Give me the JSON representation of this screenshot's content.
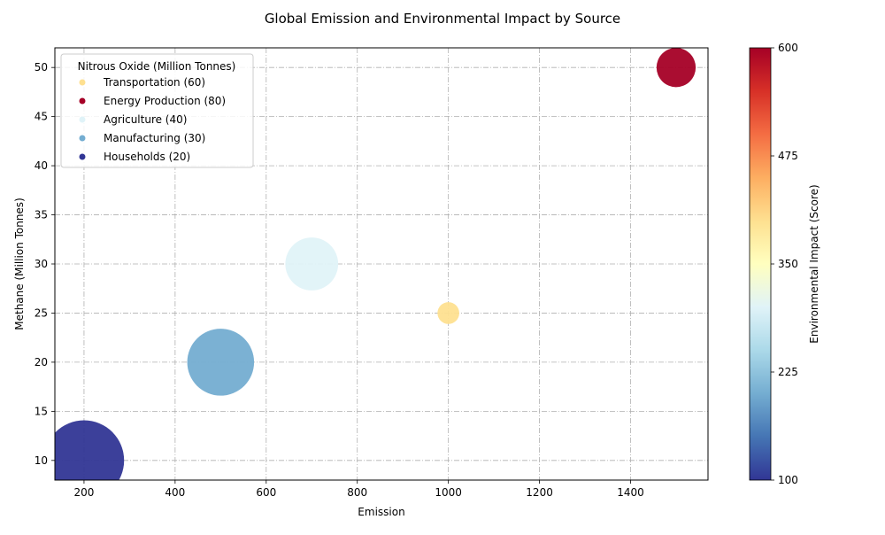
{
  "chart_data": {
    "type": "scatter",
    "title": "Global Emission and Environmental Impact by Source",
    "xlabel": "Emission",
    "ylabel": "Methane (Million Tonnes)",
    "xlim": [
      136,
      1570
    ],
    "ylim": [
      8,
      52
    ],
    "xticks": [
      200,
      400,
      600,
      800,
      1000,
      1200,
      1400
    ],
    "yticks": [
      10,
      15,
      20,
      25,
      30,
      35,
      40,
      45,
      50
    ],
    "grid": true,
    "legend": {
      "title": "Nitrous Oxide (Million Tonnes)",
      "placement": "top-left",
      "entries": [
        "Transportation (60)",
        "Energy Production (80)",
        "Agriculture (40)",
        "Manufacturing (30)",
        "Households (20)"
      ]
    },
    "colorbar": {
      "label": "Environmental Impact (Score)",
      "range": [
        100,
        600
      ],
      "ticks": [
        100,
        225,
        350,
        475,
        600
      ],
      "colormap": "RdYlBu_r"
    },
    "points": [
      {
        "source": "Transportation",
        "emission": 1000,
        "methane": 25,
        "nitrous_oxide": 60,
        "impact": 400,
        "color": "#fee090",
        "size_rel": 0.17
      },
      {
        "source": "Energy Production",
        "emission": 1500,
        "methane": 50,
        "nitrous_oxide": 80,
        "impact": 600,
        "color": "#a50026",
        "size_rel": 0.55
      },
      {
        "source": "Agriculture",
        "emission": 700,
        "methane": 30,
        "nitrous_oxide": 40,
        "impact": 300,
        "color": "#e0f3f8",
        "size_rel": 1.0
      },
      {
        "source": "Manufacturing",
        "emission": 500,
        "methane": 20,
        "nitrous_oxide": 30,
        "impact": 200,
        "color": "#74add1",
        "size_rel": 1.6
      },
      {
        "source": "Households",
        "emission": 200,
        "methane": 10,
        "nitrous_oxide": 20,
        "impact": 100,
        "color": "#313695",
        "size_rel": 2.3
      }
    ]
  }
}
